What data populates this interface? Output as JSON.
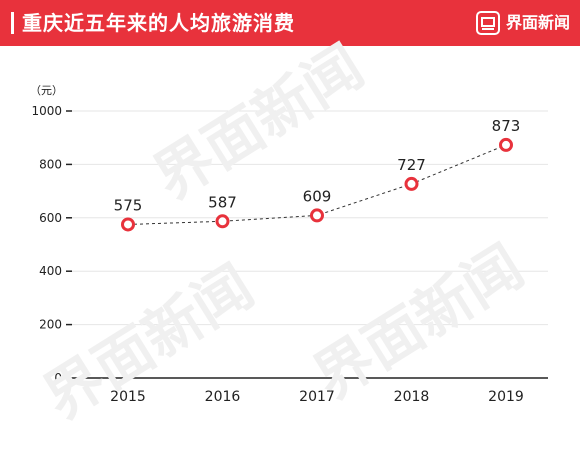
{
  "header": {
    "title": "重庆近五年来的人均旅游消费",
    "brand": "界面新闻"
  },
  "watermark": "界面新闻",
  "colors": {
    "header_bg": "#e8323c",
    "marker": "#e8323c",
    "line": "#333333",
    "grid": "#e6e6e6",
    "axis": "#222222",
    "text": "#222222"
  },
  "chart_data": {
    "type": "line",
    "x": [
      "2015",
      "2016",
      "2017",
      "2018",
      "2019"
    ],
    "series": [
      {
        "values": [
          575,
          587,
          609,
          727,
          873
        ]
      }
    ],
    "ylabel": "（元）",
    "ylim": [
      0,
      1000
    ],
    "yticks": [
      0,
      200,
      400,
      600,
      800,
      1000
    ],
    "grid": true,
    "line_style": "dashed"
  }
}
